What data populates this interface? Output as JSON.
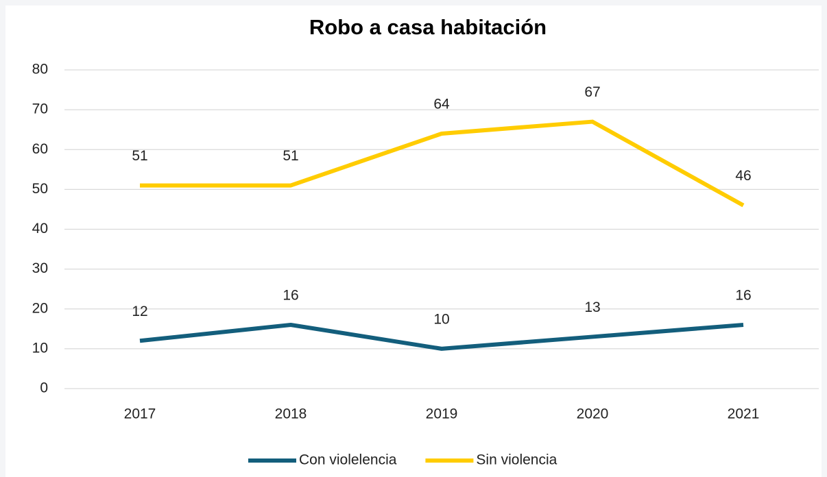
{
  "chart_data": {
    "type": "line",
    "title": "Robo a casa habitación",
    "categories": [
      "2017",
      "2018",
      "2019",
      "2020",
      "2021"
    ],
    "series": [
      {
        "name": "Con violelencia",
        "color": "#135e7c",
        "values": [
          12,
          16,
          10,
          13,
          16
        ]
      },
      {
        "name": "Sin violencia",
        "color": "#ffcc00",
        "values": [
          51,
          51,
          64,
          67,
          46
        ]
      }
    ],
    "ylim": [
      0,
      80
    ],
    "yticks": [
      0,
      10,
      20,
      30,
      40,
      50,
      60,
      70,
      80
    ],
    "grid": true,
    "legend": "bottom",
    "data_labels": true
  }
}
